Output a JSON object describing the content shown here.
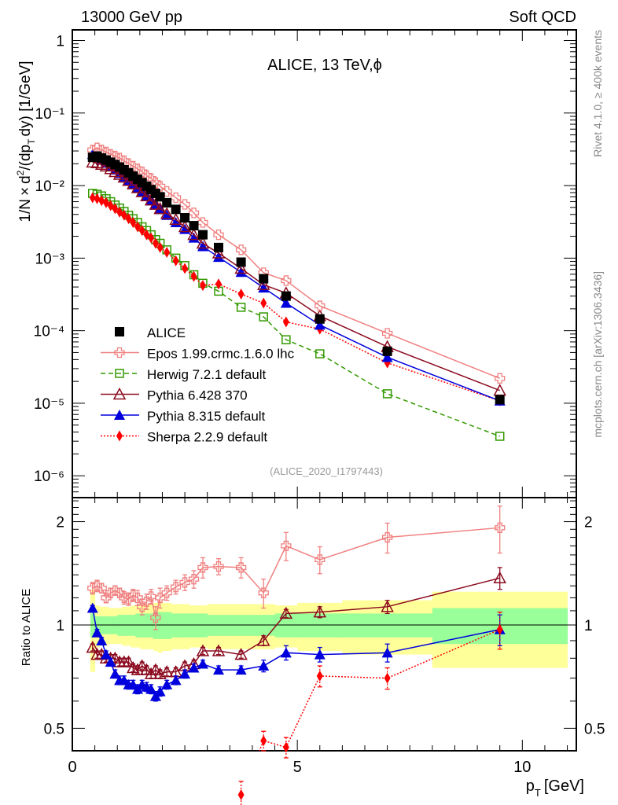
{
  "header": {
    "left": "13000 GeV pp",
    "right": "Soft QCD"
  },
  "side_labels": {
    "top": "Rivet 4.1.0, ≥ 400k events",
    "bottom": "mcplots.cern.ch [arXiv:1306.3436]"
  },
  "chart_data": [
    {
      "type": "scatter",
      "panel": "main",
      "title": "ALICE, 13 TeV,ϕ",
      "analysis_id": "(ALICE_2020_I1797443)",
      "xlabel": "p_T [GeV]",
      "ylabel": "1/N × d²/(dp_T dy) [1/GeV]",
      "xlim": [
        0,
        11.2
      ],
      "ylim": [
        5e-07,
        1.4
      ],
      "yscale": "log",
      "yticks": [
        {
          "v": 1,
          "label": "1"
        },
        {
          "v": 0.1,
          "label": "10⁻¹"
        },
        {
          "v": 0.01,
          "label": "10⁻²"
        },
        {
          "v": 0.001,
          "label": "10⁻³"
        },
        {
          "v": 0.0001,
          "label": "10⁻⁴"
        },
        {
          "v": 1e-05,
          "label": "10⁻⁵"
        },
        {
          "v": 1e-06,
          "label": "10⁻⁶"
        }
      ],
      "legend_position": "lower-left",
      "x": [
        0.45,
        0.55,
        0.65,
        0.75,
        0.85,
        0.95,
        1.05,
        1.15,
        1.25,
        1.35,
        1.45,
        1.55,
        1.65,
        1.75,
        1.85,
        1.95,
        2.1,
        2.3,
        2.5,
        2.7,
        2.9,
        3.25,
        3.75,
        4.25,
        4.75,
        5.5,
        7.0,
        9.5
      ],
      "series": [
        {
          "name": "ALICE",
          "color": "#000000",
          "marker": "square-filled",
          "line": "none",
          "values": [
            0.0245,
            0.0255,
            0.024,
            0.0225,
            0.021,
            0.0195,
            0.018,
            0.0165,
            0.015,
            0.0135,
            0.0122,
            0.011,
            0.0098,
            0.0088,
            0.0078,
            0.007,
            0.0058,
            0.0047,
            0.0036,
            0.0028,
            0.0021,
            0.0014,
            0.00088,
            0.00052,
            0.0003,
            0.000145,
            5.2e-05,
            1.12e-05
          ]
        },
        {
          "name": "Epos 1.99.crmc.1.6.0 lhc",
          "color": "#f08080",
          "marker": "cross-open",
          "line": "solid",
          "values": [
            0.031,
            0.033,
            0.031,
            0.029,
            0.027,
            0.0255,
            0.024,
            0.022,
            0.02,
            0.0185,
            0.017,
            0.0155,
            0.0138,
            0.0125,
            0.011,
            0.0098,
            0.0083,
            0.0068,
            0.0055,
            0.0042,
            0.0031,
            0.0021,
            0.0013,
            0.00063,
            0.00049,
            0.00022,
            9.2e-05,
            2.2e-05
          ]
        },
        {
          "name": "Herwig 7.2.1 default",
          "color": "#339900",
          "marker": "square-open",
          "line": "dashed",
          "values": [
            0.0078,
            0.0076,
            0.0072,
            0.0066,
            0.006,
            0.0054,
            0.0049,
            0.0044,
            0.0039,
            0.0035,
            0.0031,
            0.0027,
            0.0024,
            0.0021,
            0.0018,
            0.0016,
            0.0013,
            0.001,
            0.00079,
            0.00059,
            0.00045,
            0.00035,
            0.00021,
            0.000155,
            7.5e-05,
            4.8e-05,
            1.35e-05,
            3.5e-06
          ]
        },
        {
          "name": "Pythia 6.428 370",
          "color": "#8b0a1e",
          "marker": "triangle-open",
          "line": "solid",
          "values": [
            0.021,
            0.0205,
            0.0195,
            0.0185,
            0.017,
            0.0155,
            0.0142,
            0.013,
            0.0117,
            0.0105,
            0.0093,
            0.0082,
            0.0072,
            0.0063,
            0.0055,
            0.0048,
            0.0041,
            0.0034,
            0.0027,
            0.0021,
            0.0016,
            0.00117,
            0.00072,
            0.00043,
            0.00033,
            0.00016,
            6e-05,
            1.5e-05
          ]
        },
        {
          "name": "Pythia 8.315 default",
          "color": "#0000dd",
          "marker": "triangle-filled",
          "line": "solid",
          "values": [
            0.027,
            0.0245,
            0.0225,
            0.0205,
            0.0185,
            0.0165,
            0.0148,
            0.0132,
            0.0118,
            0.0104,
            0.0092,
            0.0081,
            0.0071,
            0.0062,
            0.0054,
            0.0047,
            0.0039,
            0.0031,
            0.0025,
            0.0019,
            0.00145,
            0.00103,
            0.00064,
            0.00039,
            0.00024,
            0.00012,
            4.3e-05,
            1.08e-05
          ]
        },
        {
          "name": "Sherpa 2.2.9 default",
          "color": "#ff0000",
          "marker": "diamond-filled",
          "line": "dotted",
          "values": [
            0.0068,
            0.0066,
            0.0062,
            0.0058,
            0.0053,
            0.0048,
            0.0043,
            0.0039,
            0.0035,
            0.0031,
            0.0027,
            0.0024,
            0.0021,
            0.0019,
            0.0016,
            0.0014,
            0.0012,
            0.00092,
            0.00072,
            0.00056,
            0.00042,
            0.00044,
            0.00032,
            0.00024,
            0.000132,
            0.000105,
            3.6e-05,
            1.08e-05
          ]
        }
      ]
    },
    {
      "type": "scatter",
      "panel": "ratio",
      "ylabel": "Ratio to ALICE",
      "xlim": [
        0,
        11.2
      ],
      "ylim": [
        0.43,
        2.35
      ],
      "yscale": "log",
      "yticks": [
        {
          "v": 2,
          "label": "2"
        },
        {
          "v": 1,
          "label": "1"
        },
        {
          "v": 0.5,
          "label": "0.5"
        }
      ],
      "xticks": [
        {
          "v": 0,
          "label": "0"
        },
        {
          "v": 5,
          "label": "5"
        },
        {
          "v": 10,
          "label": "10"
        }
      ],
      "bands": {
        "stat_color": "#99ff99",
        "total_color": "#ffff99",
        "edges": [
          0.4,
          0.5,
          0.6,
          0.7,
          0.8,
          0.9,
          1.0,
          1.1,
          1.2,
          1.3,
          1.4,
          1.5,
          1.6,
          1.7,
          1.8,
          1.9,
          2.0,
          2.2,
          2.4,
          2.6,
          2.8,
          3.0,
          3.5,
          4.0,
          4.5,
          5.0,
          6.0,
          8.0,
          11.0
        ],
        "stat": [
          0.08,
          0.06,
          0.06,
          0.06,
          0.06,
          0.06,
          0.07,
          0.07,
          0.07,
          0.07,
          0.08,
          0.08,
          0.08,
          0.08,
          0.09,
          0.09,
          0.09,
          0.08,
          0.08,
          0.08,
          0.08,
          0.07,
          0.07,
          0.07,
          0.08,
          0.08,
          0.08,
          0.12
        ],
        "total": [
          0.27,
          0.14,
          0.13,
          0.13,
          0.12,
          0.12,
          0.12,
          0.13,
          0.13,
          0.14,
          0.14,
          0.15,
          0.15,
          0.15,
          0.16,
          0.17,
          0.16,
          0.15,
          0.15,
          0.14,
          0.14,
          0.15,
          0.15,
          0.15,
          0.14,
          0.16,
          0.18,
          0.25
        ]
      },
      "series": [
        {
          "name": "Epos 1.99.crmc.1.6.0 lhc",
          "values": [
            1.28,
            1.3,
            1.28,
            1.2,
            1.24,
            1.26,
            1.24,
            1.2,
            1.19,
            1.22,
            1.2,
            1.13,
            1.17,
            1.21,
            1.05,
            1.2,
            1.24,
            1.29,
            1.33,
            1.36,
            1.47,
            1.48,
            1.47,
            1.24,
            1.7,
            1.55,
            1.8,
            1.92
          ],
          "err": [
            0.05,
            0.05,
            0.04,
            0.04,
            0.04,
            0.04,
            0.04,
            0.05,
            0.05,
            0.05,
            0.06,
            0.06,
            0.06,
            0.06,
            0.08,
            0.08,
            0.06,
            0.06,
            0.07,
            0.08,
            0.1,
            0.08,
            0.1,
            0.12,
            0.16,
            0.14,
            0.18,
            0.3
          ]
        },
        {
          "name": "Pythia 6.428 370",
          "values": [
            0.86,
            0.82,
            0.82,
            0.8,
            0.8,
            0.8,
            0.78,
            0.78,
            0.78,
            0.75,
            0.74,
            0.76,
            0.74,
            0.72,
            0.74,
            0.72,
            0.73,
            0.73,
            0.76,
            0.77,
            0.84,
            0.84,
            0.82,
            0.9,
            1.08,
            1.09,
            1.13,
            1.37
          ],
          "err": [
            0.02,
            0.02,
            0.02,
            0.02,
            0.02,
            0.02,
            0.02,
            0.02,
            0.02,
            0.02,
            0.02,
            0.02,
            0.02,
            0.02,
            0.02,
            0.02,
            0.02,
            0.02,
            0.02,
            0.02,
            0.02,
            0.02,
            0.02,
            0.03,
            0.03,
            0.04,
            0.05,
            0.1
          ]
        },
        {
          "name": "Pythia 8.315 default",
          "values": [
            1.12,
            0.95,
            0.9,
            0.82,
            0.78,
            0.72,
            0.69,
            0.69,
            0.67,
            0.67,
            0.65,
            0.67,
            0.66,
            0.65,
            0.62,
            0.64,
            0.67,
            0.69,
            0.72,
            0.75,
            0.77,
            0.74,
            0.74,
            0.76,
            0.83,
            0.82,
            0.83,
            0.97
          ],
          "err": [
            0.02,
            0.02,
            0.02,
            0.02,
            0.02,
            0.02,
            0.02,
            0.02,
            0.02,
            0.02,
            0.02,
            0.02,
            0.02,
            0.02,
            0.02,
            0.02,
            0.02,
            0.02,
            0.02,
            0.02,
            0.02,
            0.02,
            0.02,
            0.03,
            0.04,
            0.04,
            0.05,
            0.1
          ]
        },
        {
          "name": "Sherpa 2.2.9 default",
          "values": [
            null,
            null,
            null,
            null,
            null,
            null,
            null,
            null,
            null,
            null,
            null,
            null,
            null,
            null,
            null,
            null,
            null,
            null,
            null,
            null,
            null,
            null,
            0.32,
            0.46,
            0.44,
            0.71,
            0.7,
            0.97
          ],
          "err": [
            null,
            null,
            null,
            null,
            null,
            null,
            null,
            null,
            null,
            null,
            null,
            null,
            null,
            null,
            null,
            null,
            null,
            null,
            null,
            null,
            null,
            null,
            0.03,
            0.03,
            0.03,
            0.05,
            0.05,
            0.12
          ]
        }
      ]
    }
  ]
}
